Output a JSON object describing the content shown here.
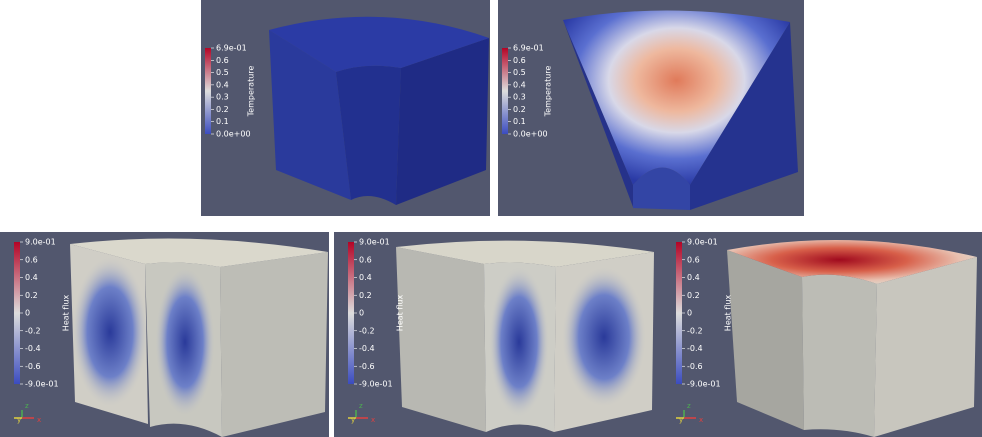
{
  "panels": [
    {
      "colorbar": {
        "title": "Temperature",
        "labels": [
          "6.9e-01",
          "0.6",
          "0.5",
          "0.4",
          "0.3",
          "0.2",
          "0.1",
          "0.0e+00"
        ]
      }
    },
    {
      "colorbar": {
        "title": "Temperature",
        "labels": [
          "6.9e-01",
          "0.6",
          "0.5",
          "0.4",
          "0.3",
          "0.2",
          "0.1",
          "0.0e+00"
        ]
      }
    },
    {
      "colorbar": {
        "title": "Heat flux",
        "labels": [
          "9.0e-01",
          "0.6",
          "0.4",
          "0.2",
          "0",
          "-0.2",
          "-0.4",
          "-0.6",
          "-9.0e-01"
        ]
      },
      "axes": [
        "z",
        "y",
        "x"
      ]
    },
    {
      "colorbar": {
        "title": "Heat flux",
        "labels": [
          "9.0e-01",
          "0.6",
          "0.4",
          "0.2",
          "0",
          "-0.2",
          "-0.4",
          "-0.6",
          "-9.0e-01"
        ]
      },
      "axes": [
        "z",
        "y",
        "x"
      ]
    },
    {
      "colorbar": {
        "title": "Heat flux",
        "labels": [
          "9.0e-01",
          "0.6",
          "0.4",
          "0.2",
          "0",
          "-0.2",
          "-0.4",
          "-0.6",
          "-9.0e-01"
        ]
      },
      "axes": [
        "z",
        "y",
        "x"
      ]
    }
  ]
}
